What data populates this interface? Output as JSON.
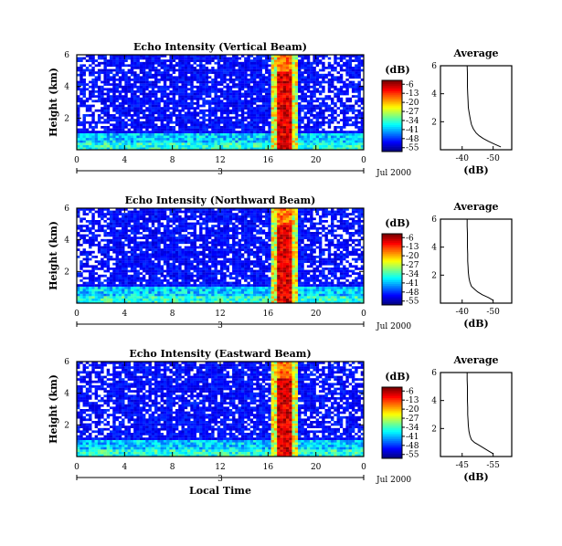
{
  "chart_data": [
    {
      "type": "heatmap",
      "title": "Echo Intensity (Vertical Beam)",
      "ylabel": "Height (km)",
      "xlabel": "",
      "x_ticks": [
        "0",
        "4",
        "8",
        "12",
        "16",
        "20",
        "0"
      ],
      "x_range": [
        0,
        24
      ],
      "y_ticks": [
        "2",
        "4",
        "6"
      ],
      "y_range": [
        0,
        6
      ],
      "date_day": "3",
      "date_month_year": "Jul 2000",
      "colorbar": {
        "unit": "(dB)",
        "ticks": [
          "-6",
          "-13",
          "-20",
          "-27",
          "-34",
          "-41",
          "-48",
          "-55"
        ],
        "range": [
          -58,
          -3
        ]
      },
      "features": {
        "strong_echo_band_time_hours": [
          16.8,
          18.0
        ],
        "low_level_layer_top_km": 1.0
      },
      "average_profile": {
        "title": "Average",
        "xlabel": "(dB)",
        "x_ticks": [
          "-40",
          "-50"
        ],
        "y_ticks": [
          "2",
          "4",
          "6"
        ],
        "heights_km": [
          0.2,
          0.4,
          0.6,
          0.8,
          1.0,
          1.2,
          1.5,
          1.8,
          2.2,
          2.6,
          3.0,
          3.5,
          4.0,
          4.5,
          5.0,
          5.5,
          6.0
        ],
        "values_db": [
          -52.5,
          -50.5,
          -48.5,
          -46.8,
          -45.5,
          -44.5,
          -43.6,
          -43.0,
          -42.6,
          -42.3,
          -42.0,
          -41.9,
          -41.8,
          -41.7,
          -41.7,
          -41.7,
          -41.6
        ]
      }
    },
    {
      "type": "heatmap",
      "title": "Echo Intensity (Northward Beam)",
      "ylabel": "Height (km)",
      "xlabel": "",
      "x_ticks": [
        "0",
        "4",
        "8",
        "12",
        "16",
        "20",
        "0"
      ],
      "x_range": [
        0,
        24
      ],
      "y_ticks": [
        "2",
        "4",
        "6"
      ],
      "y_range": [
        0,
        6
      ],
      "date_day": "3",
      "date_month_year": "Jul 2000",
      "colorbar": {
        "unit": "(dB)",
        "ticks": [
          "-6",
          "-13",
          "-20",
          "-27",
          "-34",
          "-41",
          "-48",
          "-55"
        ],
        "range": [
          -58,
          -3
        ]
      },
      "features": {
        "strong_echo_band_time_hours": [
          16.8,
          18.0
        ],
        "low_level_layer_top_km": 1.0
      },
      "average_profile": {
        "title": "Average",
        "xlabel": "(dB)",
        "x_ticks": [
          "-40",
          "-50"
        ],
        "y_ticks": [
          "2",
          "4",
          "6"
        ],
        "heights_km": [
          0.2,
          0.4,
          0.6,
          0.8,
          1.0,
          1.2,
          1.5,
          1.8,
          2.2,
          2.6,
          3.0,
          3.5,
          4.0,
          4.5,
          5.0,
          5.5,
          6.0
        ],
        "values_db": [
          -50.0,
          -48.5,
          -46.5,
          -45.0,
          -44.0,
          -43.0,
          -42.5,
          -42.2,
          -42.0,
          -41.9,
          -41.8,
          -41.8,
          -41.7,
          -41.7,
          -41.7,
          -41.6,
          -41.6
        ]
      }
    },
    {
      "type": "heatmap",
      "title": "Echo Intensity (Eastward Beam)",
      "ylabel": "Height (km)",
      "xlabel": "Local Time",
      "x_ticks": [
        "0",
        "4",
        "8",
        "12",
        "16",
        "20",
        "0"
      ],
      "x_range": [
        0,
        24
      ],
      "y_ticks": [
        "2",
        "4",
        "6"
      ],
      "y_range": [
        0,
        6
      ],
      "date_day": "3",
      "date_month_year": "Jul 2000",
      "colorbar": {
        "unit": "(dB)",
        "ticks": [
          "-6",
          "-13",
          "-20",
          "-27",
          "-34",
          "-41",
          "-48",
          "-55"
        ],
        "range": [
          -58,
          -3
        ]
      },
      "features": {
        "strong_echo_band_time_hours": [
          16.8,
          18.0
        ],
        "low_level_layer_top_km": 1.0
      },
      "average_profile": {
        "title": "Average",
        "xlabel": "(dB)",
        "x_ticks": [
          "-45",
          "-55"
        ],
        "y_ticks": [
          "2",
          "4",
          "6"
        ],
        "heights_km": [
          0.2,
          0.4,
          0.6,
          0.8,
          1.0,
          1.2,
          1.5,
          1.8,
          2.2,
          2.6,
          3.0,
          3.5,
          4.0,
          4.5,
          5.0,
          5.5,
          6.0
        ],
        "values_db": [
          -55.0,
          -53.5,
          -52.0,
          -50.5,
          -49.0,
          -48.0,
          -47.5,
          -47.2,
          -47.0,
          -46.9,
          -46.8,
          -46.8,
          -46.7,
          -46.7,
          -46.7,
          -46.6,
          -46.6
        ]
      }
    }
  ]
}
